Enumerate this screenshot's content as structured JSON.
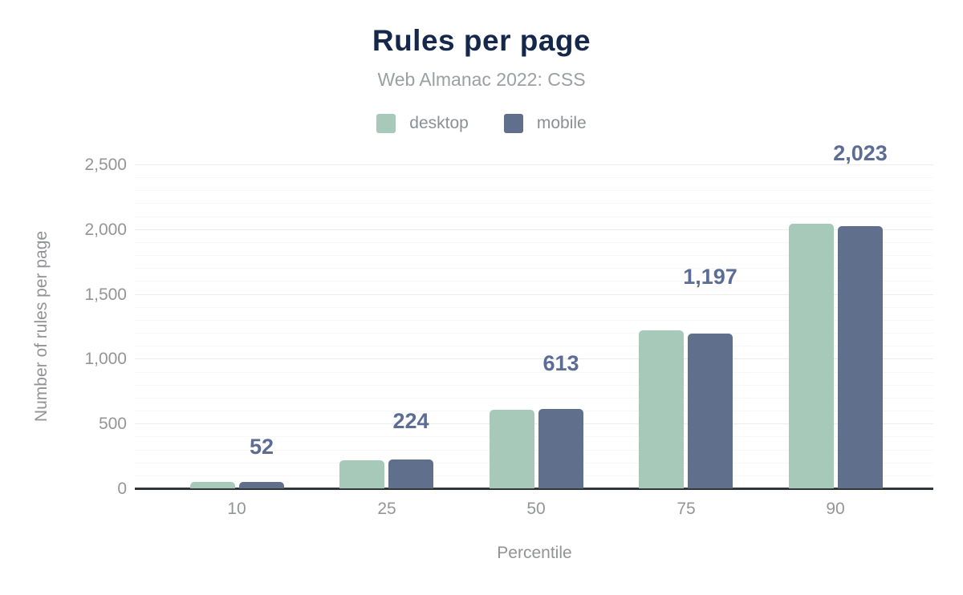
{
  "header": {
    "title": "Rules per page",
    "subtitle": "Web Almanac 2022: CSS"
  },
  "legend": {
    "items": [
      {
        "label": "desktop",
        "color": "#a7c9ba"
      },
      {
        "label": "mobile",
        "color": "#5f6f8c"
      }
    ]
  },
  "chart_data": {
    "type": "bar",
    "title": "Rules per page",
    "subtitle": "Web Almanac 2022: CSS",
    "xlabel": "Percentile",
    "ylabel": "Number of rules per page",
    "categories": [
      "10",
      "25",
      "50",
      "75",
      "90"
    ],
    "series": [
      {
        "name": "desktop",
        "color": "#a7c9ba",
        "values": [
          48,
          216,
          608,
          1221,
          2039
        ]
      },
      {
        "name": "mobile",
        "color": "#5f6f8c",
        "values": [
          52,
          224,
          613,
          1197,
          2023
        ],
        "data_labels": [
          "52",
          "224",
          "613",
          "1,197",
          "2,023"
        ]
      }
    ],
    "ylim": [
      0,
      2500
    ],
    "ytick_step_major": 500,
    "ytick_step_minor": 100,
    "yticks": [
      "0",
      "500",
      "1,000",
      "1,500",
      "2,000",
      "2,500"
    ],
    "grid": "horizontal",
    "legend_position": "top",
    "data_label_color": "#5b6d94",
    "axis_line_color": "#333639"
  }
}
